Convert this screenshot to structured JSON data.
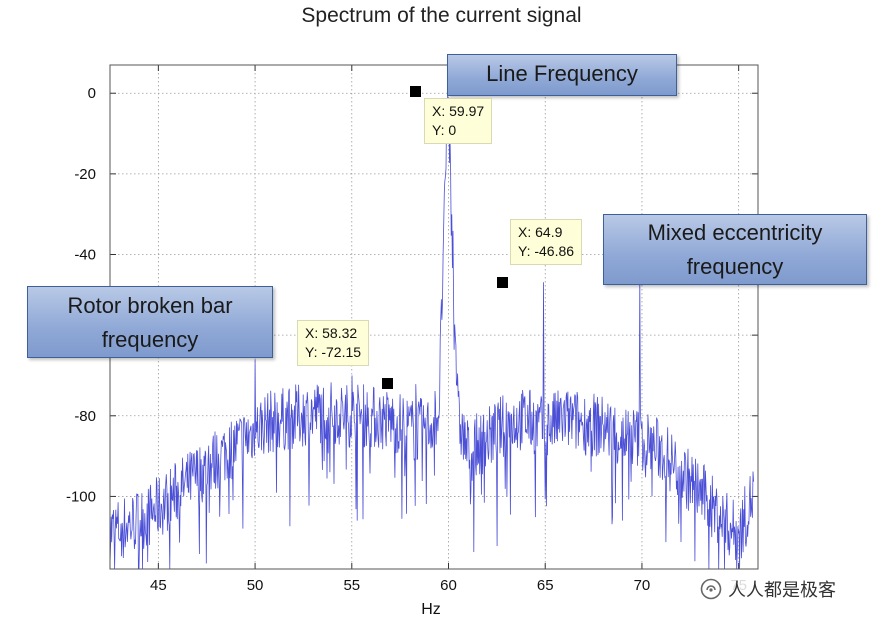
{
  "chart_data": {
    "type": "line",
    "title": "Spectrum of the current signal",
    "xlabel": "Hz",
    "ylabel": "",
    "xlim": [
      42.5,
      76
    ],
    "ylim": [
      -118,
      7
    ],
    "x_ticks": [
      45,
      50,
      55,
      60,
      65,
      70,
      75
    ],
    "x_tick_labels": [
      "45",
      "50",
      "55",
      "60",
      "65",
      "70",
      "75"
    ],
    "y_ticks": [
      0,
      -20,
      -40,
      -60,
      -80,
      -100
    ],
    "y_tick_labels": [
      "0",
      "-20",
      "-40",
      "-60",
      "-80",
      "-100"
    ],
    "grid": true,
    "series": [
      {
        "color": "#4b4fd6",
        "x": [
          42.5,
          43.5,
          44.5,
          45.5,
          46.5,
          47.5,
          48.5,
          49.5,
          50.5,
          51.5,
          52.5,
          53.5,
          54.5,
          55.5,
          56.5,
          57.5,
          58.3,
          59.0,
          59.5,
          59.97,
          60.5,
          61.0,
          62.0,
          63.0,
          64.0,
          64.9,
          66.0,
          67.0,
          68.0,
          69.0,
          70.0,
          71.0,
          72.0,
          73.0,
          74.0,
          75.0,
          75.8
        ],
        "values": [
          -108,
          -106,
          -104,
          -100,
          -96,
          -92,
          -88,
          -85,
          -81,
          -80,
          -79,
          -78,
          -79,
          -79,
          -80,
          -81,
          -83,
          -82,
          -78,
          0,
          -80,
          -88,
          -85,
          -81,
          -80,
          -82,
          -80,
          -81,
          -82,
          -84,
          -85,
          -88,
          -93,
          -98,
          -104,
          -109,
          -98
        ],
        "peaks": [
          {
            "x": 50.0,
            "y": -66
          },
          {
            "x": 55.0,
            "y": -70
          },
          {
            "x": 58.32,
            "y": -72.15
          },
          {
            "x": 59.97,
            "y": 0
          },
          {
            "x": 64.9,
            "y": -46.86
          },
          {
            "x": 69.9,
            "y": -46
          }
        ]
      }
    ],
    "datatips": [
      {
        "x": 59.97,
        "y": 0,
        "lines": [
          "X: 59.97",
          "Y: 0"
        ]
      },
      {
        "x": 64.9,
        "y": -46.86,
        "lines": [
          "X: 64.9",
          "Y: -46.86"
        ]
      },
      {
        "x": 58.32,
        "y": -72.15,
        "lines": [
          "X: 58.32",
          "Y: -72.15"
        ]
      }
    ],
    "annotations": [
      {
        "id": "line-frequency",
        "lines": [
          "Line Frequency"
        ]
      },
      {
        "id": "mixed-eccentricity",
        "lines": [
          "Mixed eccentricity",
          "frequency"
        ]
      },
      {
        "id": "rotor-broken-bar",
        "lines": [
          "Rotor broken bar",
          "frequency"
        ]
      }
    ]
  },
  "watermark": {
    "text": "人人都是极客",
    "icon": "wechat-official-account-icon"
  }
}
